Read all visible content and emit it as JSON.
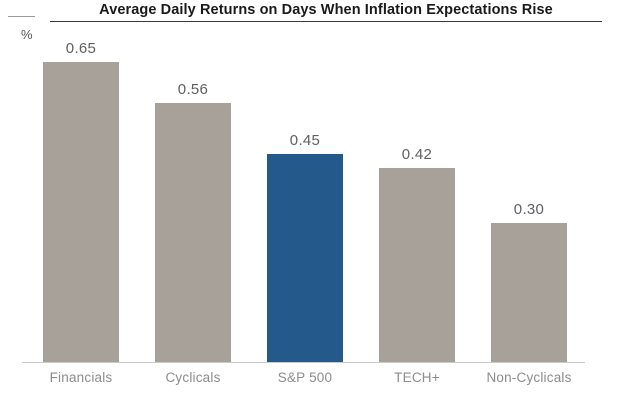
{
  "chart_data": {
    "type": "bar",
    "title": "Average Daily Returns on Days When Inflation Expectations Rise",
    "ylabel": "%",
    "xlabel": "",
    "categories": [
      "Financials",
      "Cyclicals",
      "S&P 500",
      "TECH+",
      "Non-Cyclicals"
    ],
    "values": [
      0.65,
      0.56,
      0.45,
      0.42,
      0.3
    ],
    "value_labels": [
      "0.65",
      "0.56",
      "0.45",
      "0.42",
      "0.30"
    ],
    "highlight_index": 2,
    "highlighted_category": "S&P 500",
    "bar_color": "#a8a19a",
    "highlight_color": "#23598b",
    "title_color": "#1a1a1a",
    "value_label_color": "#5f5f5f",
    "category_label_color": "#8c8c8c",
    "axis_line_color": "#c9c9c9",
    "ylim": [
      0,
      0.72
    ],
    "grid": "off",
    "legend": "none"
  }
}
